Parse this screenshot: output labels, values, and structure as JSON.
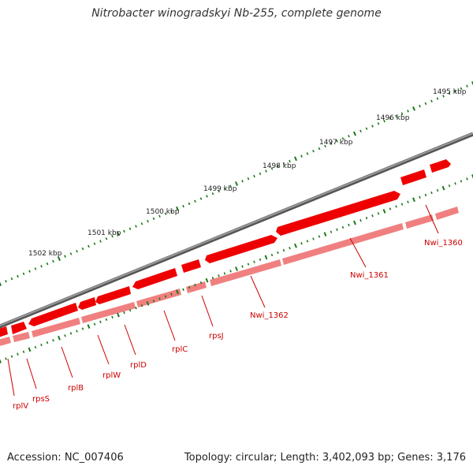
{
  "title": "Nitrobacter winogradskyi Nb-255, complete genome",
  "footer": {
    "accession": "Accession: NC_007406",
    "topology": "Topology: circular; Length: 3,402,093 bp; Genes: 3,176"
  },
  "scale_labels": [
    "1495 kbp",
    "1496 kbp",
    "1497 kbp",
    "1498 kbp",
    "1499 kbp",
    "1500 kbp",
    "1501 kbp",
    "1502 kbp"
  ],
  "genes": [
    "rplV",
    "rpsS",
    "rplB",
    "rplW",
    "rplD",
    "rplC",
    "rpsJ",
    "Nwi_1362",
    "Nwi_1361",
    "Nwi_1360"
  ],
  "colors": {
    "backbone": "#777777",
    "gene_fill": "#ee0000",
    "gene_shadow": "#f08080",
    "tick": "#1a7a1a",
    "label": "#cc0000"
  }
}
